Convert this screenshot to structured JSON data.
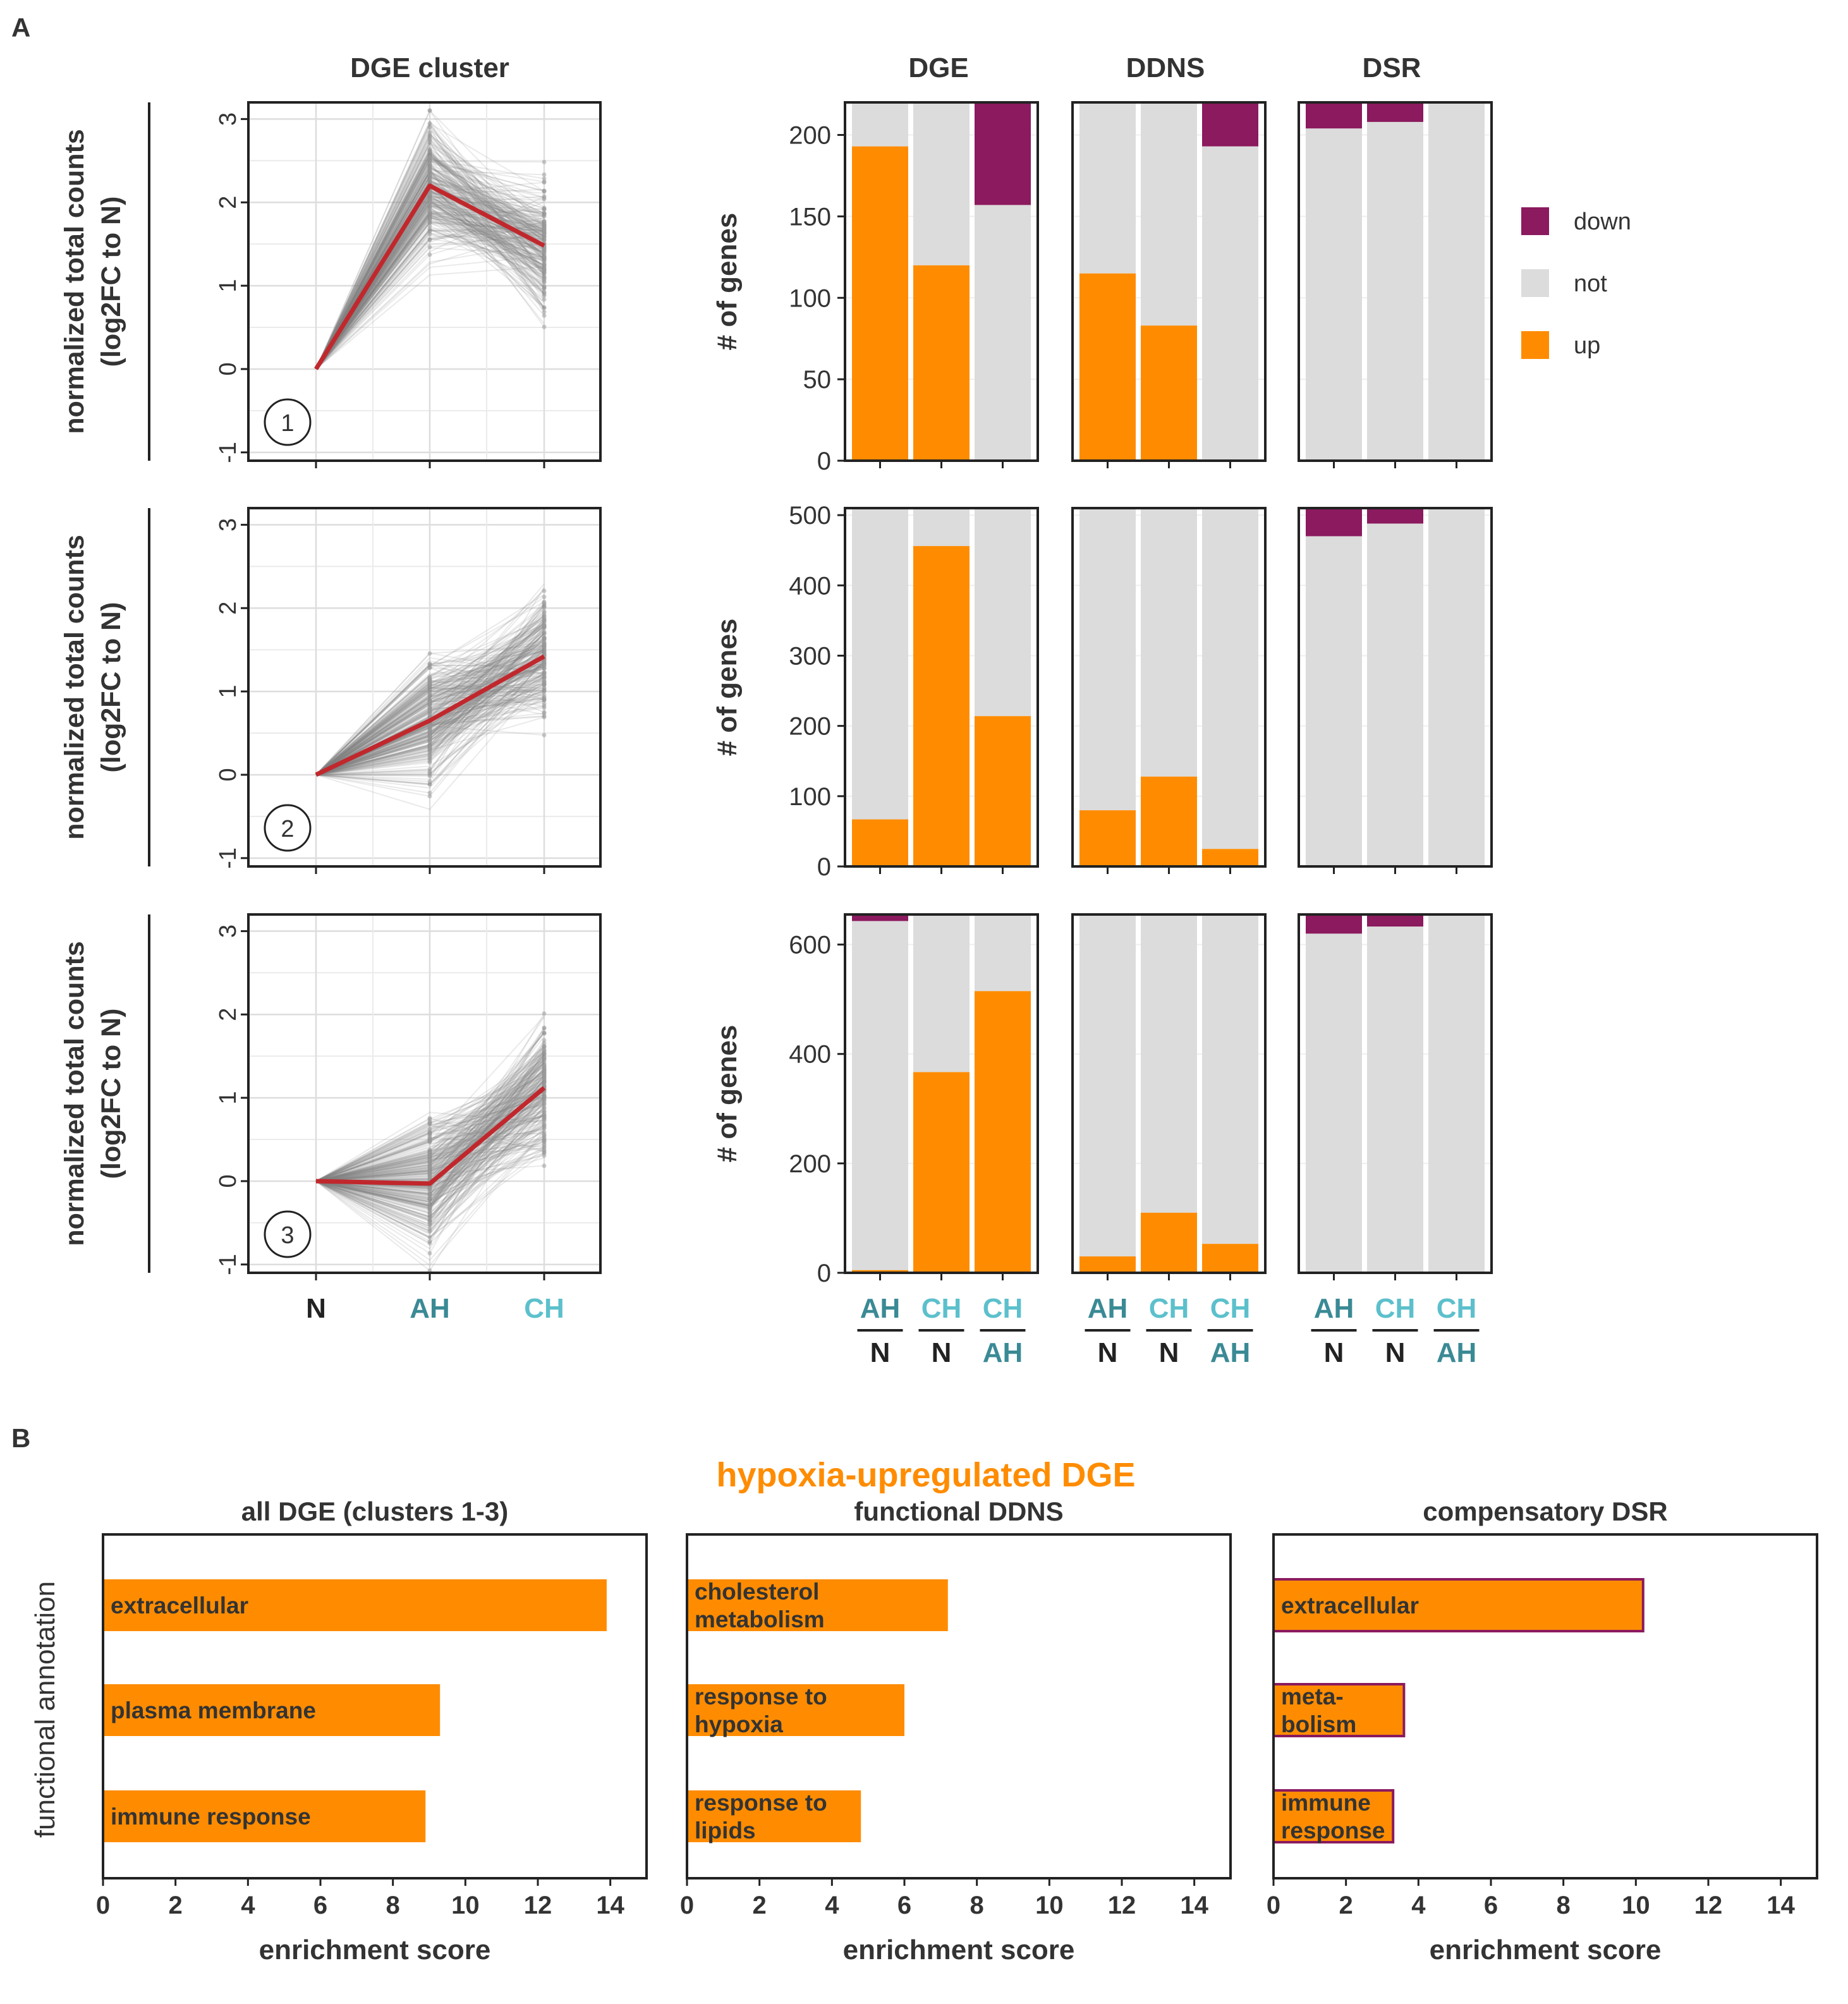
{
  "panel_labels": {
    "a": "A",
    "b": "B"
  },
  "colors": {
    "up": "#FF8C00",
    "down": "#8B1A5E",
    "not": "#DCDCDC",
    "trend": "#C0282D",
    "gene_lines": "#808080",
    "ah": "#3A8A95",
    "ch": "#5CC0CC",
    "n": "#222222",
    "axis": "#222222",
    "text": "#333333",
    "title_b": "#FF8C00"
  },
  "panel_a": {
    "line_title": "DGE cluster",
    "y_label_line1": "normalized total counts",
    "y_label_line2": "(log2FC to N)",
    "x_tick_labels": [
      "N",
      "AH",
      "CH"
    ],
    "bar_y_label": "# of genes",
    "comparison_groups": [
      "DGE",
      "DDNS",
      "DSR"
    ],
    "comparisons": [
      {
        "top": "AH",
        "bottom": "N"
      },
      {
        "top": "CH",
        "bottom": "N"
      },
      {
        "top": "CH",
        "bottom": "AH"
      }
    ],
    "legend": [
      {
        "key": "down",
        "label": "down"
      },
      {
        "key": "not",
        "label": "not"
      },
      {
        "key": "up",
        "label": "up"
      }
    ]
  },
  "panel_b": {
    "title": "hypoxia-upregulated DGE",
    "y_label": "functional annotation",
    "x_label": "enrichment score"
  },
  "chart_data": [
    {
      "type": "line",
      "cluster": 1,
      "badge": "1",
      "x": [
        "N",
        "AH",
        "CH"
      ],
      "mean_trend": [
        0,
        2.2,
        1.48
      ],
      "ylim": [
        -1.1,
        3.2
      ],
      "yticks": [
        -1,
        0,
        1,
        2,
        3
      ],
      "note": "individual gene profiles drawn in light grey behind the red cluster mean"
    },
    {
      "type": "line",
      "cluster": 2,
      "badge": "2",
      "x": [
        "N",
        "AH",
        "CH"
      ],
      "mean_trend": [
        0,
        0.65,
        1.42
      ],
      "ylim": [
        -1.1,
        3.2
      ],
      "yticks": [
        -1,
        0,
        1,
        2,
        3
      ]
    },
    {
      "type": "line",
      "cluster": 3,
      "badge": "3",
      "x": [
        "N",
        "AH",
        "CH"
      ],
      "mean_trend": [
        0,
        -0.03,
        1.12
      ],
      "ylim": [
        -1.1,
        3.2
      ],
      "yticks": [
        -1,
        0,
        1,
        2,
        3
      ]
    },
    {
      "type": "bar",
      "stacked": true,
      "cluster": 1,
      "ylim": [
        0,
        220
      ],
      "yticks": [
        0,
        50,
        100,
        150,
        200
      ],
      "groups": {
        "DGE": [
          {
            "up": 193,
            "not": 27,
            "down": 0
          },
          {
            "up": 120,
            "not": 100,
            "down": 0
          },
          {
            "up": 0,
            "not": 157,
            "down": 63
          }
        ],
        "DDNS": [
          {
            "up": 115,
            "not": 105,
            "down": 0
          },
          {
            "up": 83,
            "not": 137,
            "down": 0
          },
          {
            "up": 0,
            "not": 193,
            "down": 27
          }
        ],
        "DSR": [
          {
            "up": 0,
            "not": 204,
            "down": 16
          },
          {
            "up": 0,
            "not": 208,
            "down": 12
          },
          {
            "up": 0,
            "not": 220,
            "down": 0
          }
        ]
      }
    },
    {
      "type": "bar",
      "stacked": true,
      "cluster": 2,
      "ylim": [
        0,
        510
      ],
      "yticks": [
        0,
        100,
        200,
        300,
        400,
        500
      ],
      "groups": {
        "DGE": [
          {
            "up": 67,
            "not": 443,
            "down": 0
          },
          {
            "up": 456,
            "not": 54,
            "down": 0
          },
          {
            "up": 214,
            "not": 296,
            "down": 0
          }
        ],
        "DDNS": [
          {
            "up": 80,
            "not": 430,
            "down": 0
          },
          {
            "up": 128,
            "not": 382,
            "down": 0
          },
          {
            "up": 25,
            "not": 485,
            "down": 0
          }
        ],
        "DSR": [
          {
            "up": 0,
            "not": 470,
            "down": 40
          },
          {
            "up": 0,
            "not": 488,
            "down": 22
          },
          {
            "up": 0,
            "not": 510,
            "down": 0
          }
        ]
      }
    },
    {
      "type": "bar",
      "stacked": true,
      "cluster": 3,
      "ylim": [
        0,
        655
      ],
      "yticks": [
        0,
        200,
        400,
        600
      ],
      "groups": {
        "DGE": [
          {
            "up": 5,
            "not": 638,
            "down": 12
          },
          {
            "up": 367,
            "not": 288,
            "down": 0
          },
          {
            "up": 515,
            "not": 140,
            "down": 0
          }
        ],
        "DDNS": [
          {
            "up": 30,
            "not": 625,
            "down": 0
          },
          {
            "up": 110,
            "not": 545,
            "down": 0
          },
          {
            "up": 53,
            "not": 602,
            "down": 0
          }
        ],
        "DSR": [
          {
            "up": 0,
            "not": 620,
            "down": 35
          },
          {
            "up": 0,
            "not": 633,
            "down": 22
          },
          {
            "up": 0,
            "not": 655,
            "down": 0
          }
        ]
      }
    },
    {
      "type": "bar",
      "orientation": "horizontal",
      "title": "all DGE (clusters 1-3)",
      "xlim": [
        0,
        15
      ],
      "xticks": [
        0,
        2,
        4,
        6,
        8,
        10,
        12,
        14
      ],
      "xlabel": "enrichment score",
      "bars": [
        {
          "label": [
            "extracellular"
          ],
          "value": 13.9
        },
        {
          "label": [
            "plasma membrane"
          ],
          "value": 9.3
        },
        {
          "label": [
            "immune response"
          ],
          "value": 8.9
        }
      ]
    },
    {
      "type": "bar",
      "orientation": "horizontal",
      "title": "functional DDNS",
      "xlim": [
        0,
        15
      ],
      "xticks": [
        0,
        2,
        4,
        6,
        8,
        10,
        12,
        14
      ],
      "xlabel": "enrichment score",
      "bars": [
        {
          "label": [
            "cholesterol",
            "metabolism"
          ],
          "value": 7.2
        },
        {
          "label": [
            "response to",
            "hypoxia"
          ],
          "value": 6.0
        },
        {
          "label": [
            "response to",
            "lipids"
          ],
          "value": 4.8
        }
      ]
    },
    {
      "type": "bar",
      "orientation": "horizontal",
      "title": "compensatory DSR",
      "xlim": [
        0,
        15
      ],
      "xticks": [
        0,
        2,
        4,
        6,
        8,
        10,
        12,
        14
      ],
      "xlabel": "enrichment score",
      "outlined": true,
      "bars": [
        {
          "label": [
            "extracellular"
          ],
          "value": 10.2
        },
        {
          "label": [
            "meta-",
            "bolism"
          ],
          "value": 3.6
        },
        {
          "label": [
            "immune",
            "response"
          ],
          "value": 3.3
        }
      ]
    }
  ]
}
